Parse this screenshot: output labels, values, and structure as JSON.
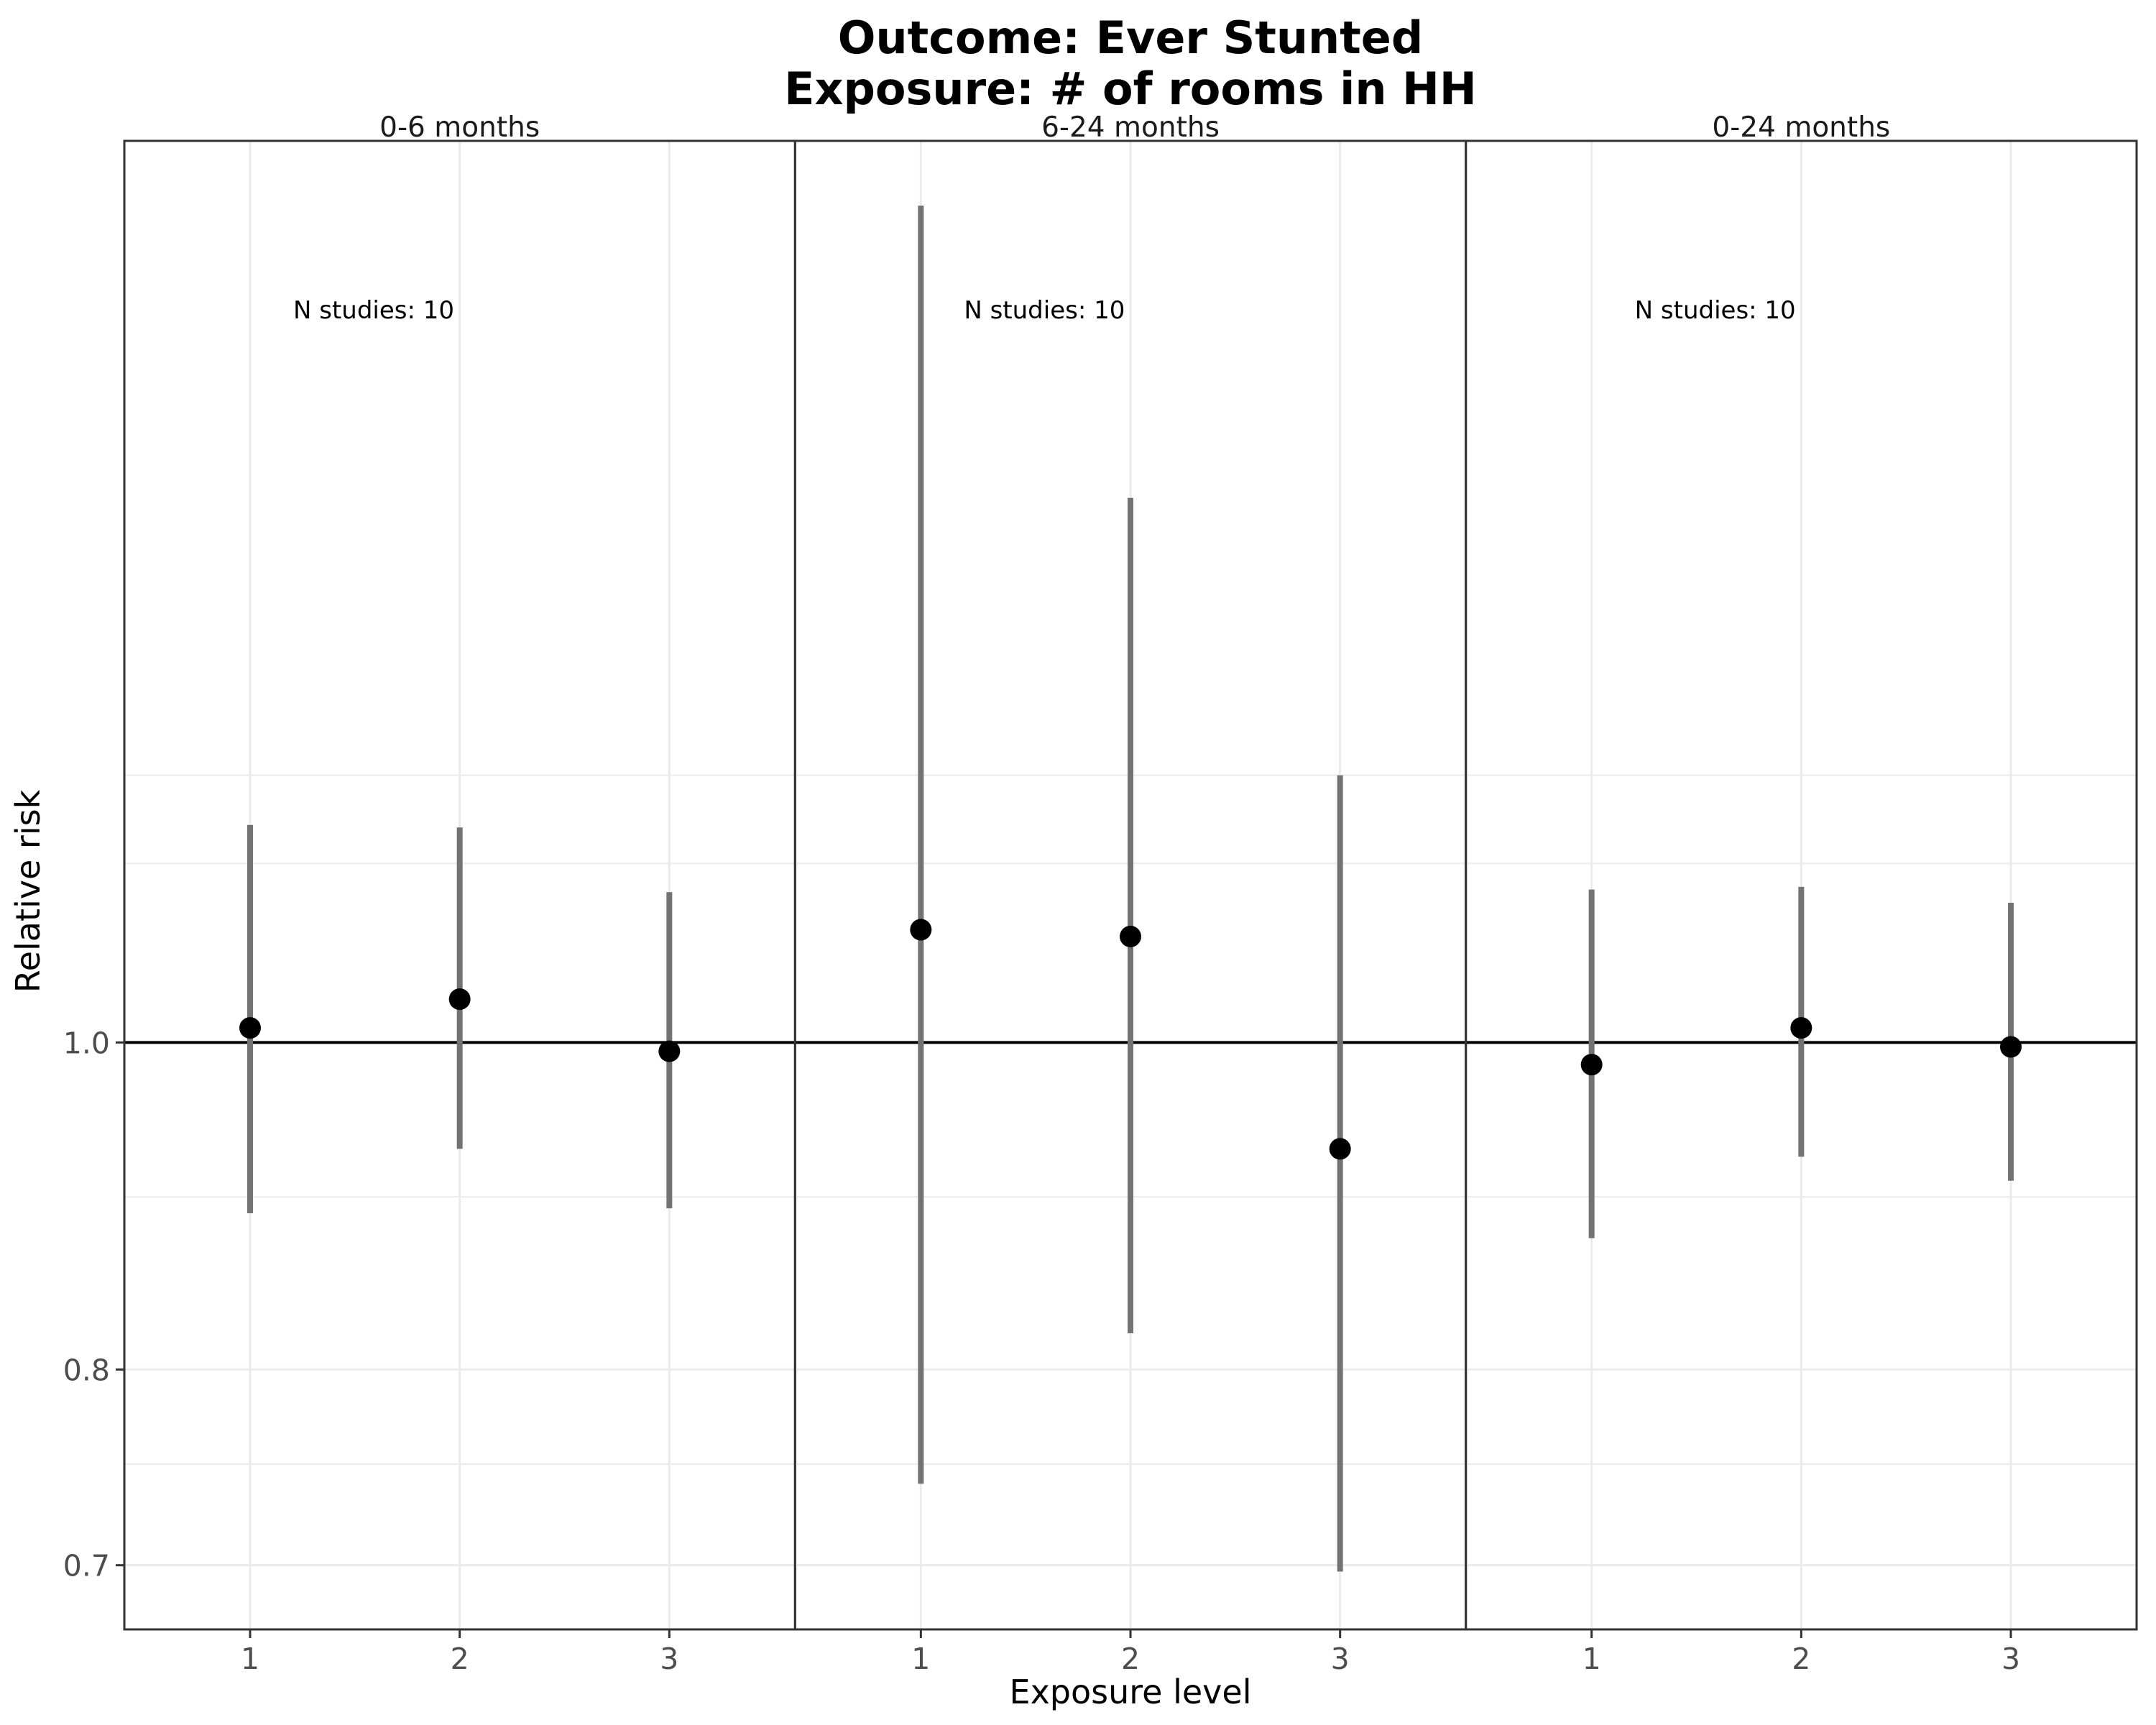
{
  "chart_data": {
    "type": "scatter",
    "title": "Outcome: Ever Stunted",
    "subtitle": "Exposure: # of rooms in HH",
    "xlabel": "Exposure level",
    "ylabel": "Relative risk",
    "y_scale": "log",
    "ylim": [
      0.67,
      1.85
    ],
    "y_ticks": [
      "0.7",
      "0.8",
      "1.0"
    ],
    "y_minor_gridlines": [
      0.75,
      0.9,
      1.13,
      1.2
    ],
    "reference_line": 1.0,
    "grid": true,
    "categories": [
      "1",
      "2",
      "3"
    ],
    "panels": [
      {
        "label": "0-6 months",
        "annotation": "N studies: 10",
        "points": [
          {
            "x": "1",
            "estimate": 1.01,
            "lower": 0.89,
            "upper": 1.16
          },
          {
            "x": "2",
            "estimate": 1.03,
            "lower": 0.93,
            "upper": 1.158
          },
          {
            "x": "3",
            "estimate": 0.994,
            "lower": 0.893,
            "upper": 1.108
          }
        ]
      },
      {
        "label": "6-24 months",
        "annotation": "N studies: 10",
        "points": [
          {
            "x": "1",
            "estimate": 1.08,
            "lower": 0.74,
            "upper": 1.77
          },
          {
            "x": "2",
            "estimate": 1.075,
            "lower": 0.82,
            "upper": 1.45
          },
          {
            "x": "3",
            "estimate": 0.93,
            "lower": 0.697,
            "upper": 1.2
          }
        ]
      },
      {
        "label": "0-24 months",
        "annotation": "N studies: 10",
        "points": [
          {
            "x": "1",
            "estimate": 0.985,
            "lower": 0.875,
            "upper": 1.11
          },
          {
            "x": "2",
            "estimate": 1.01,
            "lower": 0.925,
            "upper": 1.112
          },
          {
            "x": "3",
            "estimate": 0.997,
            "lower": 0.91,
            "upper": 1.1
          }
        ]
      }
    ]
  }
}
